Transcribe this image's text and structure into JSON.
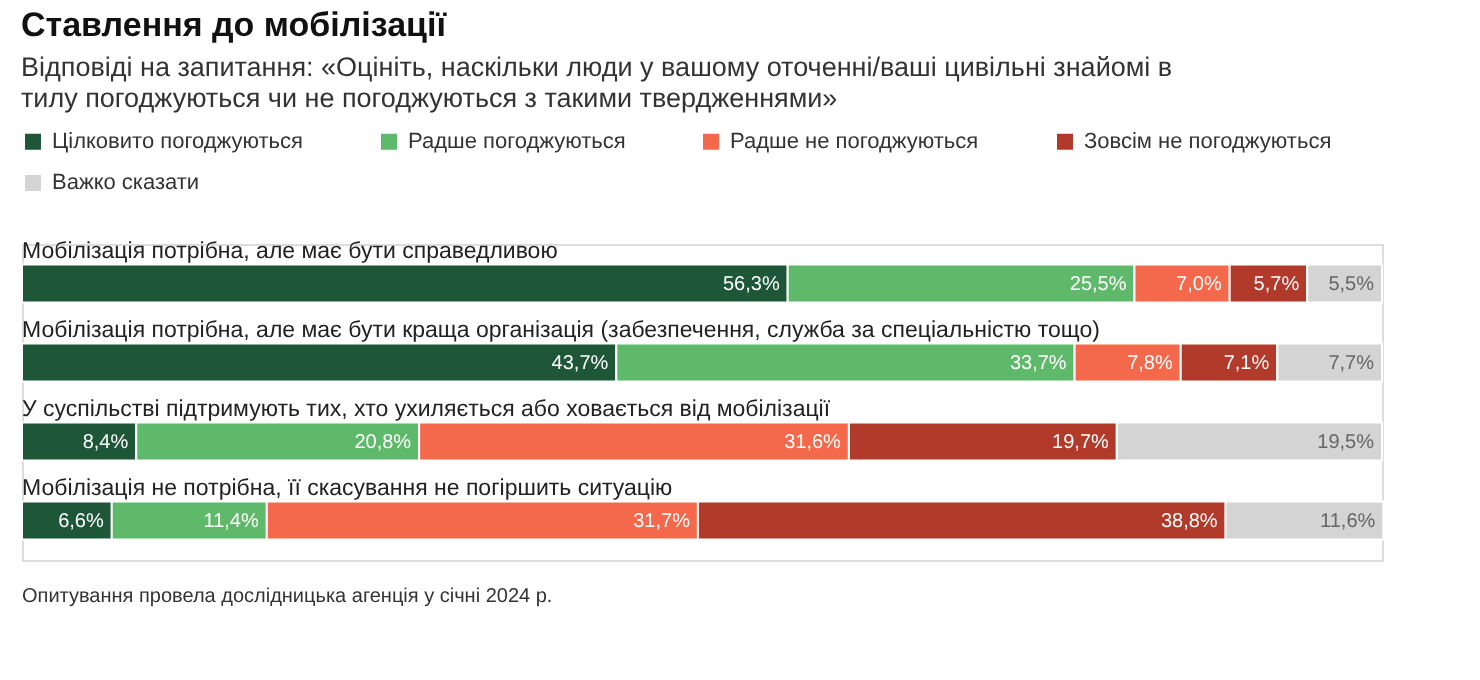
{
  "chart_data": {
    "type": "bar",
    "orientation": "horizontal",
    "stacked": true,
    "title": "Ставлення до мобілізації",
    "subtitle": "Відповіді на запитання: «Оцініть, наскільки люди у вашому оточенні/ваші цивільні знайомі в тилу погоджуються чи не погоджуються з такими твердженнями»",
    "categories": [
      "Мобілізація потрібна, але має бути справедливою",
      "Мобілізація потрібна, але має бути краща організація (забезпечення, служба за спеціальністю тощо)",
      "У суспільстві підтримують тих, хто ухиляється або ховається від мобілізації",
      "Мобілізація не потрібна, її скасування не погіршить ситуацію"
    ],
    "series": [
      {
        "name": "Цілковито погоджуються",
        "color": "#1e5737",
        "values": [
          56.3,
          43.7,
          8.4,
          6.6
        ],
        "value_labels": [
          "56,3%",
          "43,7%",
          "8,4%",
          "6,6%"
        ]
      },
      {
        "name": "Радше погоджуються",
        "color": "#5fb96a",
        "values": [
          25.5,
          33.7,
          20.8,
          11.4
        ],
        "value_labels": [
          "25,5%",
          "33,7%",
          "20,8%",
          "11,4%"
        ]
      },
      {
        "name": "Радше не погоджуються",
        "color": "#f4694b",
        "values": [
          7.0,
          7.8,
          31.6,
          31.7
        ],
        "value_labels": [
          "7,0%",
          "7,8%",
          "31,6%",
          "31,7%"
        ]
      },
      {
        "name": "Зовсім не погоджуються",
        "color": "#b13a2b",
        "values": [
          5.7,
          7.1,
          19.7,
          38.8
        ],
        "value_labels": [
          "5,7%",
          "7,1%",
          "19,7%",
          "38,8%"
        ]
      },
      {
        "name": "Важко сказати",
        "color": "#d4d4d4",
        "values": [
          5.5,
          7.7,
          19.5,
          11.6
        ],
        "value_labels": [
          "5,5%",
          "7,7%",
          "19,5%",
          "11,6%"
        ]
      }
    ],
    "xlim": [
      0,
      100
    ],
    "legend": "top left",
    "annotations": [
      "Опитування провела дослідницька агенція у січні 2024 р."
    ]
  }
}
